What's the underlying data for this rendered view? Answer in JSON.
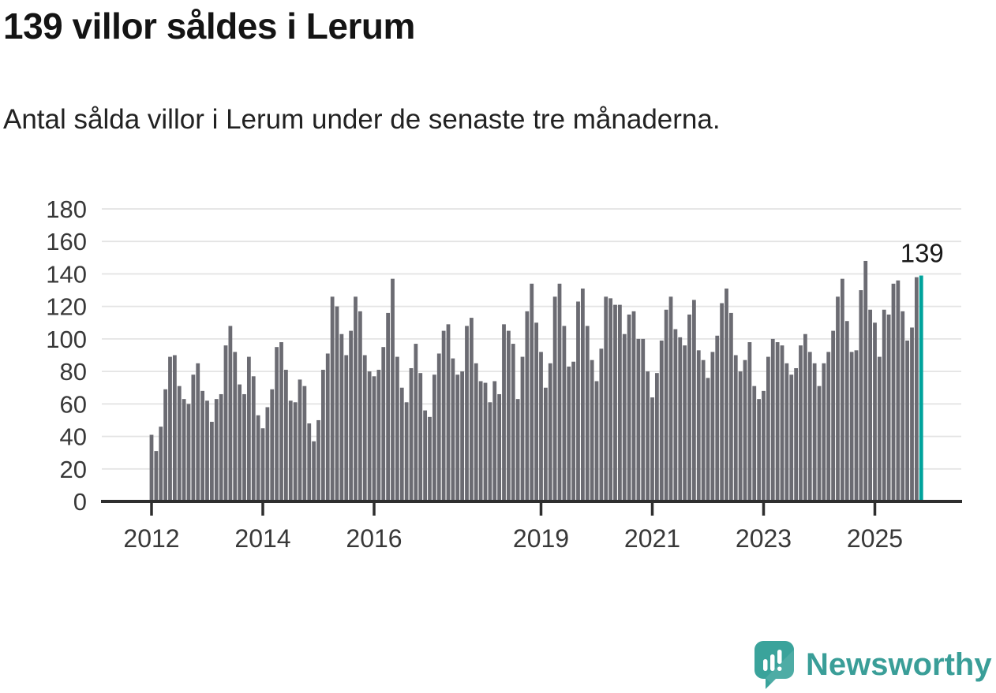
{
  "header": {
    "title": "139 villor såldes i Lerum",
    "subtitle": "Antal sålda villor i Lerum under de senaste tre månaderna."
  },
  "chart_data": {
    "type": "bar",
    "title": "139 villor såldes i Lerum",
    "subtitle": "Antal sålda villor i Lerum under de senaste tre månaderna.",
    "x_start_month": "2012-01",
    "x_end_month": "2025-11",
    "values": [
      41,
      31,
      46,
      69,
      89,
      90,
      71,
      63,
      60,
      78,
      85,
      68,
      62,
      49,
      63,
      66,
      96,
      108,
      92,
      72,
      66,
      89,
      77,
      53,
      45,
      58,
      69,
      95,
      98,
      81,
      62,
      61,
      75,
      71,
      48,
      37,
      50,
      81,
      91,
      126,
      120,
      103,
      90,
      105,
      126,
      117,
      90,
      80,
      77,
      81,
      95,
      116,
      137,
      89,
      70,
      61,
      82,
      97,
      79,
      56,
      52,
      78,
      91,
      105,
      109,
      88,
      78,
      80,
      108,
      113,
      85,
      74,
      73,
      61,
      74,
      66,
      109,
      105,
      97,
      63,
      89,
      117,
      134,
      110,
      92,
      70,
      85,
      126,
      134,
      108,
      83,
      86,
      123,
      131,
      108,
      87,
      74,
      94,
      126,
      125,
      121,
      121,
      103,
      115,
      117,
      100,
      100,
      80,
      64,
      79,
      99,
      118,
      126,
      106,
      101,
      96,
      115,
      124,
      93,
      87,
      76,
      92,
      102,
      122,
      131,
      116,
      90,
      80,
      87,
      98,
      71,
      63,
      68,
      89,
      100,
      98,
      96,
      85,
      78,
      82,
      96,
      103,
      92,
      85,
      71,
      85,
      92,
      105,
      126,
      137,
      111,
      92,
      93,
      130,
      148,
      118,
      110,
      89,
      118,
      115,
      134,
      136,
      117,
      99,
      107,
      138,
      139
    ],
    "highlight": {
      "index": 166,
      "value": 139,
      "label": "139",
      "color": "#00a39c"
    },
    "bar_color": "#6b6b72",
    "grid": true,
    "grid_color": "#e4e4e4",
    "axis_color": "#2e2e2e",
    "tick_label_color": "#383838",
    "ylim": [
      0,
      180
    ],
    "yticks": [
      0,
      20,
      40,
      60,
      80,
      100,
      120,
      140,
      160,
      180
    ],
    "x_tick_years": [
      "2012",
      "2014",
      "2016",
      "2019",
      "2021",
      "2023",
      "2025"
    ],
    "xlabel": "",
    "ylabel": ""
  },
  "annotation": {
    "label": "139"
  },
  "footer": {
    "brand": "Newsworthy",
    "brand_color": "#3a9e98",
    "logo_icon": "bar-chart-speech-bubble-icon"
  }
}
